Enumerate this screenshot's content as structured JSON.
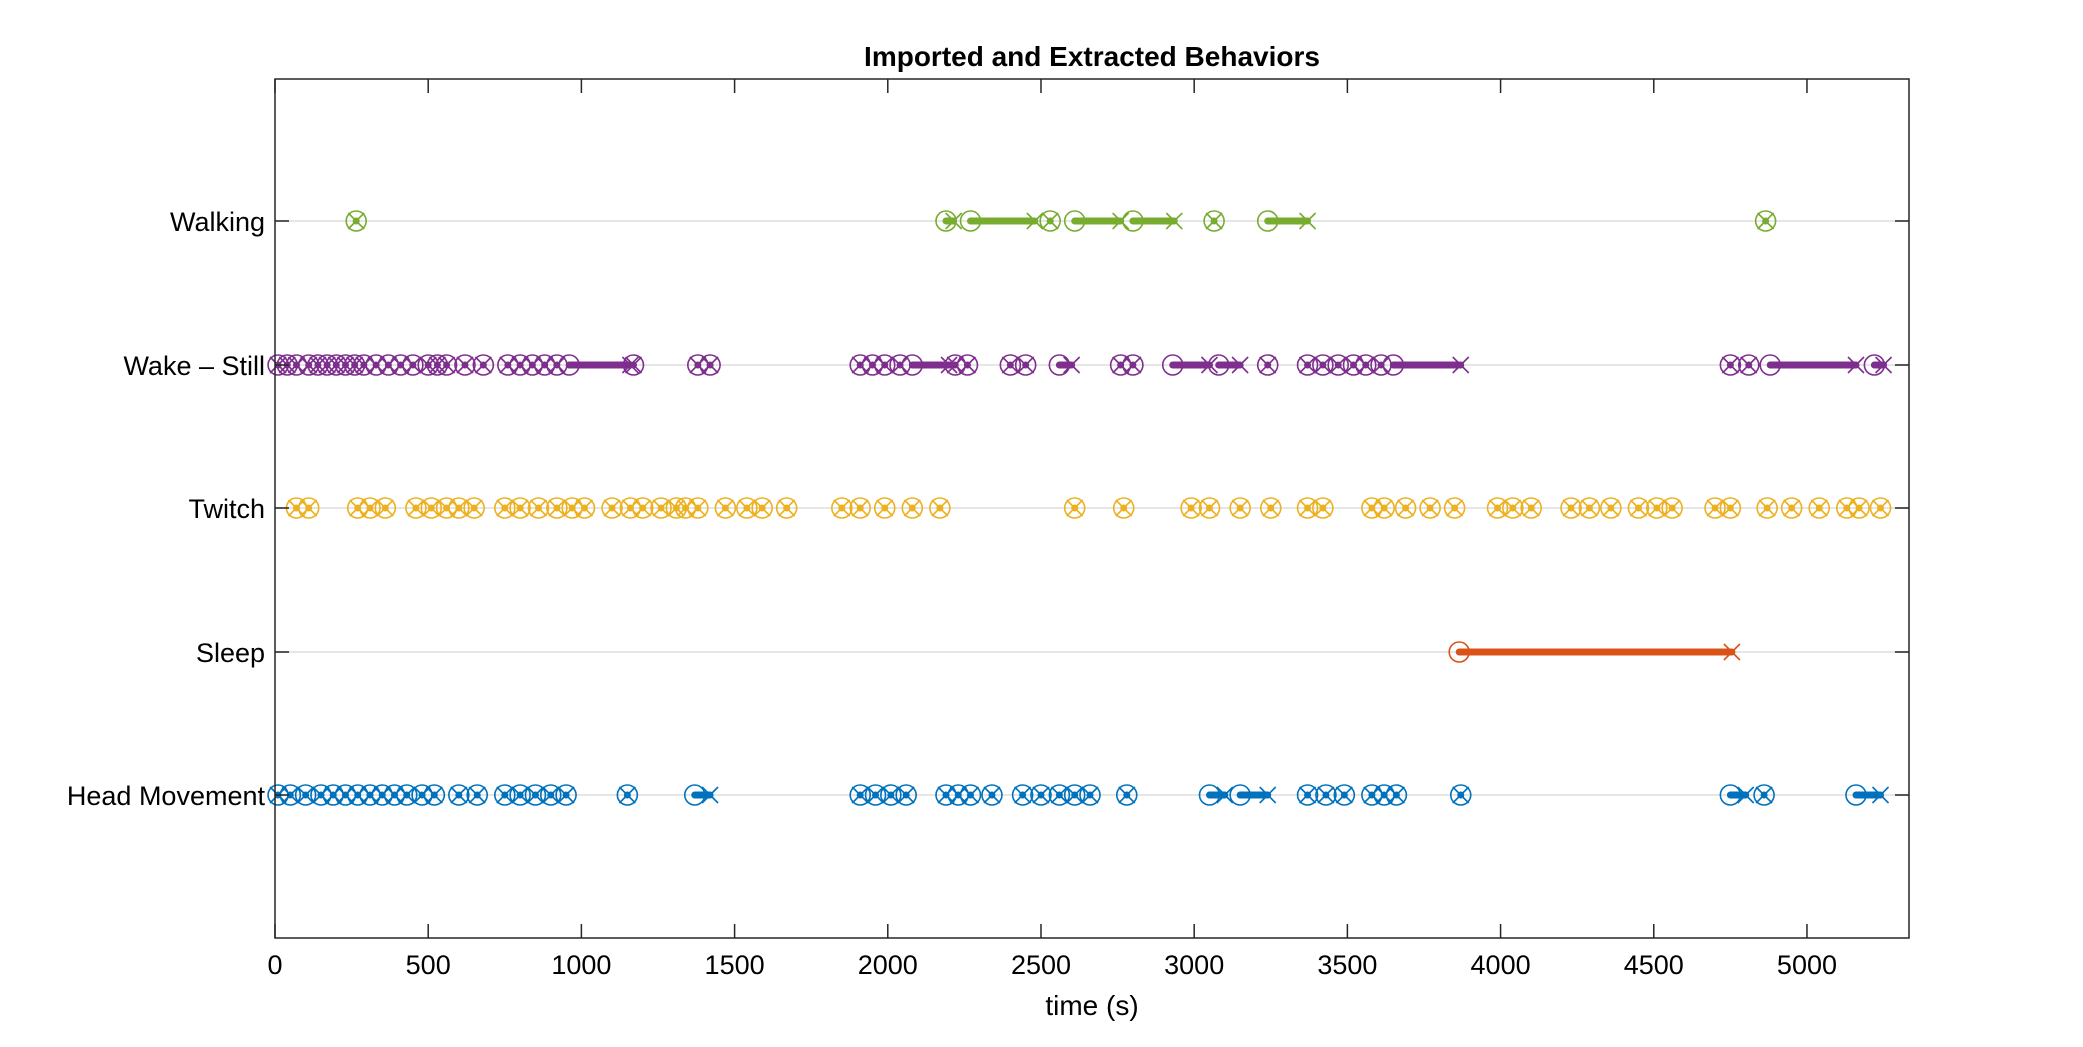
{
  "chart_data": {
    "type": "scatter",
    "title": "Imported and Extracted Behaviors",
    "xlabel": "time (s)",
    "ylabel": "",
    "xlim": [
      0,
      5333
    ],
    "x_ticks": [
      0,
      500,
      1000,
      1500,
      2000,
      2500,
      3000,
      3500,
      4000,
      4500,
      5000
    ],
    "x_tick_labels": [
      "0",
      "500",
      "1000",
      "1500",
      "2000",
      "2500",
      "3000",
      "3500",
      "4000",
      "4500",
      "5000"
    ],
    "categories": [
      "Walking",
      "Wake – Still",
      "Twitch",
      "Sleep",
      "Head Movement"
    ],
    "grid": "horizontal at category rows",
    "legend": "none",
    "marker_legend": "circle = bout start, x = bout end, thick line = bout duration",
    "series": [
      {
        "color": "#77AC30",
        "bouts": [
          [
            265,
            265
          ],
          [
            2190,
            2215
          ],
          [
            2270,
            2480
          ],
          [
            2530,
            2530
          ],
          [
            2610,
            2760
          ],
          [
            2800,
            2935
          ],
          [
            3065,
            3065
          ],
          [
            3240,
            3370
          ],
          [
            4865,
            4865
          ]
        ]
      },
      {
        "color": "#7E2F8E",
        "bouts": [
          [
            10,
            10
          ],
          [
            40,
            40
          ],
          [
            70,
            70
          ],
          [
            110,
            110
          ],
          [
            140,
            140
          ],
          [
            170,
            170
          ],
          [
            200,
            200
          ],
          [
            230,
            230
          ],
          [
            260,
            260
          ],
          [
            290,
            290
          ],
          [
            330,
            330
          ],
          [
            370,
            370
          ],
          [
            410,
            410
          ],
          [
            450,
            450
          ],
          [
            500,
            500
          ],
          [
            530,
            530
          ],
          [
            560,
            560
          ],
          [
            620,
            620
          ],
          [
            680,
            680
          ],
          [
            760,
            760
          ],
          [
            800,
            800
          ],
          [
            840,
            840
          ],
          [
            880,
            880
          ],
          [
            920,
            920
          ],
          [
            960,
            1160
          ],
          [
            1170,
            1170
          ],
          [
            1380,
            1380
          ],
          [
            1420,
            1420
          ],
          [
            1910,
            1910
          ],
          [
            1950,
            1950
          ],
          [
            1990,
            1990
          ],
          [
            2040,
            2040
          ],
          [
            2080,
            2200
          ],
          [
            2220,
            2220
          ],
          [
            2260,
            2260
          ],
          [
            2400,
            2400
          ],
          [
            2450,
            2450
          ],
          [
            2560,
            2600
          ],
          [
            2760,
            2760
          ],
          [
            2800,
            2800
          ],
          [
            2930,
            3050
          ],
          [
            3080,
            3150
          ],
          [
            3240,
            3240
          ],
          [
            3370,
            3370
          ],
          [
            3420,
            3420
          ],
          [
            3470,
            3470
          ],
          [
            3520,
            3520
          ],
          [
            3560,
            3560
          ],
          [
            3610,
            3610
          ],
          [
            3650,
            3870
          ],
          [
            4750,
            4750
          ],
          [
            4810,
            4810
          ],
          [
            4880,
            5160
          ],
          [
            5220,
            5250
          ]
        ]
      },
      {
        "color": "#EDB120",
        "bouts": [
          [
            70,
            70
          ],
          [
            110,
            110
          ],
          [
            270,
            270
          ],
          [
            310,
            310
          ],
          [
            360,
            360
          ],
          [
            460,
            460
          ],
          [
            510,
            510
          ],
          [
            560,
            560
          ],
          [
            600,
            600
          ],
          [
            650,
            650
          ],
          [
            750,
            750
          ],
          [
            800,
            800
          ],
          [
            860,
            860
          ],
          [
            920,
            920
          ],
          [
            970,
            970
          ],
          [
            1010,
            1010
          ],
          [
            1100,
            1100
          ],
          [
            1160,
            1160
          ],
          [
            1200,
            1200
          ],
          [
            1260,
            1260
          ],
          [
            1310,
            1310
          ],
          [
            1340,
            1340
          ],
          [
            1380,
            1380
          ],
          [
            1470,
            1470
          ],
          [
            1540,
            1540
          ],
          [
            1590,
            1590
          ],
          [
            1670,
            1670
          ],
          [
            1850,
            1850
          ],
          [
            1910,
            1910
          ],
          [
            1990,
            1990
          ],
          [
            2080,
            2080
          ],
          [
            2170,
            2170
          ],
          [
            2610,
            2610
          ],
          [
            2770,
            2770
          ],
          [
            2990,
            2990
          ],
          [
            3050,
            3050
          ],
          [
            3150,
            3150
          ],
          [
            3250,
            3250
          ],
          [
            3370,
            3370
          ],
          [
            3420,
            3420
          ],
          [
            3580,
            3580
          ],
          [
            3620,
            3620
          ],
          [
            3690,
            3690
          ],
          [
            3770,
            3770
          ],
          [
            3850,
            3850
          ],
          [
            3990,
            3990
          ],
          [
            4040,
            4040
          ],
          [
            4100,
            4100
          ],
          [
            4230,
            4230
          ],
          [
            4290,
            4290
          ],
          [
            4360,
            4360
          ],
          [
            4450,
            4450
          ],
          [
            4510,
            4510
          ],
          [
            4560,
            4560
          ],
          [
            4700,
            4700
          ],
          [
            4750,
            4750
          ],
          [
            4870,
            4870
          ],
          [
            4950,
            4950
          ],
          [
            5040,
            5040
          ],
          [
            5130,
            5130
          ],
          [
            5170,
            5170
          ],
          [
            5240,
            5240
          ]
        ]
      },
      {
        "color": "#D95319",
        "bouts": [
          [
            3865,
            4755
          ]
        ]
      },
      {
        "color": "#0072BD",
        "bouts": [
          [
            10,
            10
          ],
          [
            50,
            50
          ],
          [
            100,
            100
          ],
          [
            150,
            150
          ],
          [
            190,
            190
          ],
          [
            230,
            230
          ],
          [
            270,
            270
          ],
          [
            310,
            310
          ],
          [
            350,
            350
          ],
          [
            390,
            390
          ],
          [
            430,
            430
          ],
          [
            480,
            480
          ],
          [
            520,
            520
          ],
          [
            600,
            600
          ],
          [
            660,
            660
          ],
          [
            750,
            750
          ],
          [
            800,
            800
          ],
          [
            850,
            850
          ],
          [
            900,
            900
          ],
          [
            950,
            950
          ],
          [
            1150,
            1150
          ],
          [
            1370,
            1420
          ],
          [
            1910,
            1910
          ],
          [
            1960,
            1960
          ],
          [
            2010,
            2010
          ],
          [
            2060,
            2060
          ],
          [
            2190,
            2190
          ],
          [
            2230,
            2230
          ],
          [
            2270,
            2270
          ],
          [
            2340,
            2340
          ],
          [
            2440,
            2440
          ],
          [
            2500,
            2500
          ],
          [
            2560,
            2560
          ],
          [
            2610,
            2610
          ],
          [
            2660,
            2660
          ],
          [
            2780,
            2780
          ],
          [
            3050,
            3100
          ],
          [
            3150,
            3240
          ],
          [
            3370,
            3370
          ],
          [
            3430,
            3430
          ],
          [
            3490,
            3490
          ],
          [
            3580,
            3580
          ],
          [
            3620,
            3620
          ],
          [
            3660,
            3660
          ],
          [
            3870,
            3870
          ],
          [
            4750,
            4800
          ],
          [
            4860,
            4860
          ],
          [
            5160,
            5240
          ]
        ]
      }
    ]
  }
}
